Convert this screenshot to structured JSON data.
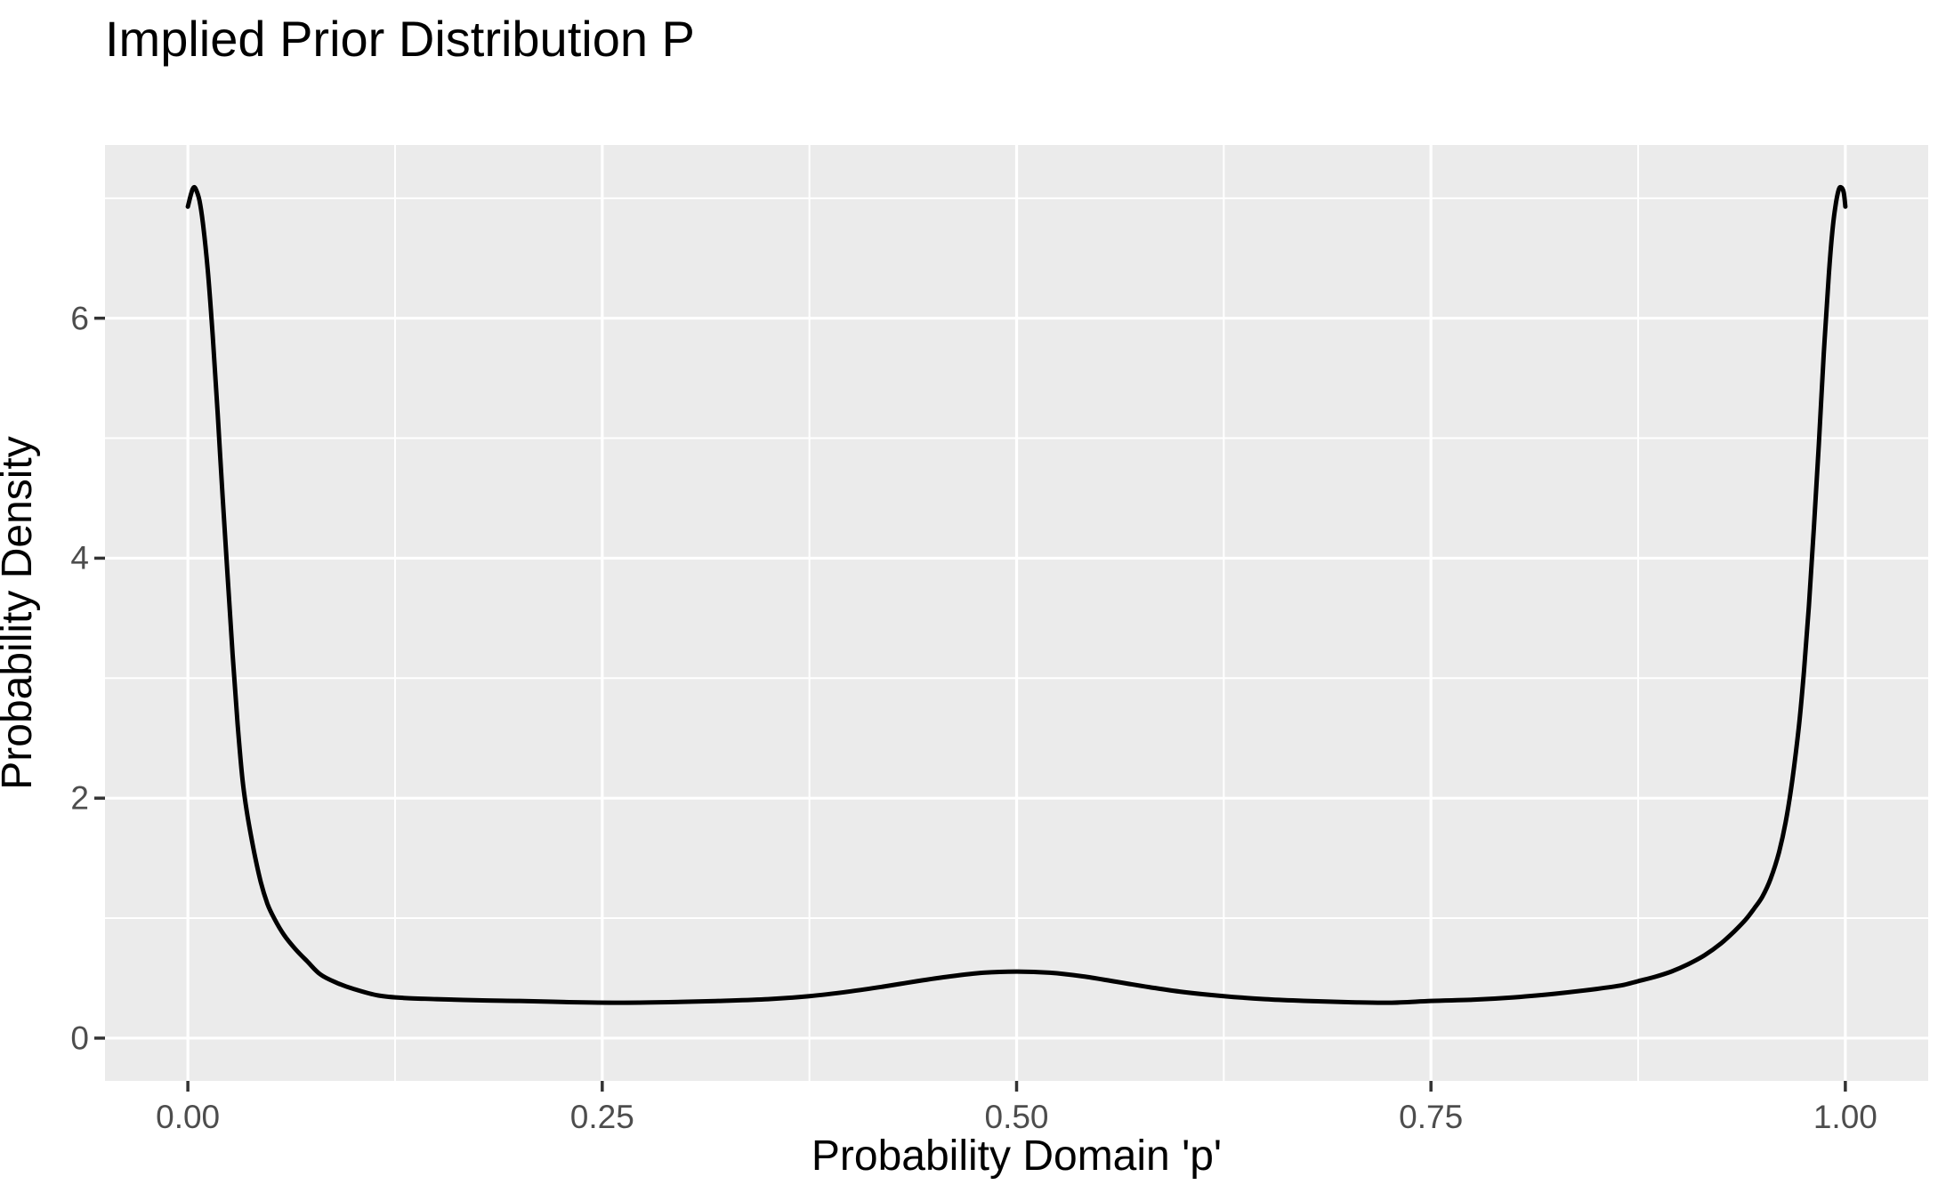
{
  "page": {
    "title": "Implied Prior Distribution P"
  },
  "chart_data": {
    "type": "line",
    "title": "Implied Prior Distribution P",
    "xlabel": "Probability Domain 'p'",
    "ylabel": "Probability Density",
    "legend": "none",
    "grid": {
      "major": true,
      "minor": true,
      "color": "#FFFFFF"
    },
    "x_tick_labels": [
      "0.00",
      "0.25",
      "0.50",
      "0.75",
      "1.00"
    ],
    "x_tick_values": [
      0,
      0.25,
      0.5,
      0.75,
      1
    ],
    "x_minor_values": [
      0.125,
      0.375,
      0.625,
      0.875
    ],
    "y_tick_labels": [
      "0",
      "2",
      "4",
      "6"
    ],
    "y_tick_values": [
      0,
      2,
      4,
      6
    ],
    "y_minor_values": [
      1,
      3,
      5,
      7
    ],
    "xlim": [
      -0.05,
      1.05
    ],
    "ylim": [
      -0.3565,
      7.4435
    ],
    "theme": {
      "panel_bg": "#EBEBEB",
      "grid_color": "#FFFFFF",
      "tick_color": "#333333",
      "tick_label_color": "#4D4D4D",
      "text_color": "#000000",
      "curve_color": "#000000",
      "plot_bg": "#FFFFFF"
    },
    "series": [
      {
        "name": "implied-prior-density",
        "x": [
          0,
          0.002,
          0.0035,
          0.005,
          0.007,
          0.009,
          0.012,
          0.015,
          0.018,
          0.021,
          0.024,
          0.027,
          0.03,
          0.033,
          0.036,
          0.04,
          0.044,
          0.048,
          0.052,
          0.058,
          0.065,
          0.072,
          0.08,
          0.09,
          0.1,
          0.115,
          0.13,
          0.15,
          0.175,
          0.2,
          0.23,
          0.26,
          0.29,
          0.32,
          0.35,
          0.375,
          0.4,
          0.42,
          0.44,
          0.46,
          0.48,
          0.5,
          0.52,
          0.54,
          0.56,
          0.58,
          0.6,
          0.625,
          0.65,
          0.675,
          0.7,
          0.725,
          0.75,
          0.775,
          0.8,
          0.825,
          0.85,
          0.865,
          0.875,
          0.885,
          0.895,
          0.905,
          0.915,
          0.925,
          0.933,
          0.94,
          0.945,
          0.95,
          0.955,
          0.96,
          0.964,
          0.968,
          0.972,
          0.975,
          0.978,
          0.981,
          0.984,
          0.987,
          0.99,
          0.992,
          0.994,
          0.996,
          0.9975,
          0.999,
          1.0
        ],
        "y": [
          6.93,
          7.04,
          7.09,
          7.07,
          6.98,
          6.8,
          6.4,
          5.85,
          5.2,
          4.5,
          3.85,
          3.2,
          2.62,
          2.15,
          1.85,
          1.55,
          1.3,
          1.12,
          1.0,
          0.86,
          0.74,
          0.64,
          0.53,
          0.46,
          0.41,
          0.355,
          0.335,
          0.325,
          0.315,
          0.31,
          0.3,
          0.295,
          0.3,
          0.31,
          0.325,
          0.35,
          0.39,
          0.43,
          0.475,
          0.515,
          0.545,
          0.555,
          0.545,
          0.515,
          0.47,
          0.425,
          0.385,
          0.35,
          0.325,
          0.31,
          0.3,
          0.295,
          0.31,
          0.32,
          0.34,
          0.37,
          0.41,
          0.44,
          0.475,
          0.51,
          0.555,
          0.615,
          0.69,
          0.79,
          0.89,
          0.99,
          1.08,
          1.18,
          1.33,
          1.55,
          1.8,
          2.15,
          2.6,
          3.05,
          3.6,
          4.25,
          4.95,
          5.7,
          6.35,
          6.7,
          6.93,
          7.07,
          7.09,
          7.05,
          6.93
        ]
      }
    ]
  }
}
